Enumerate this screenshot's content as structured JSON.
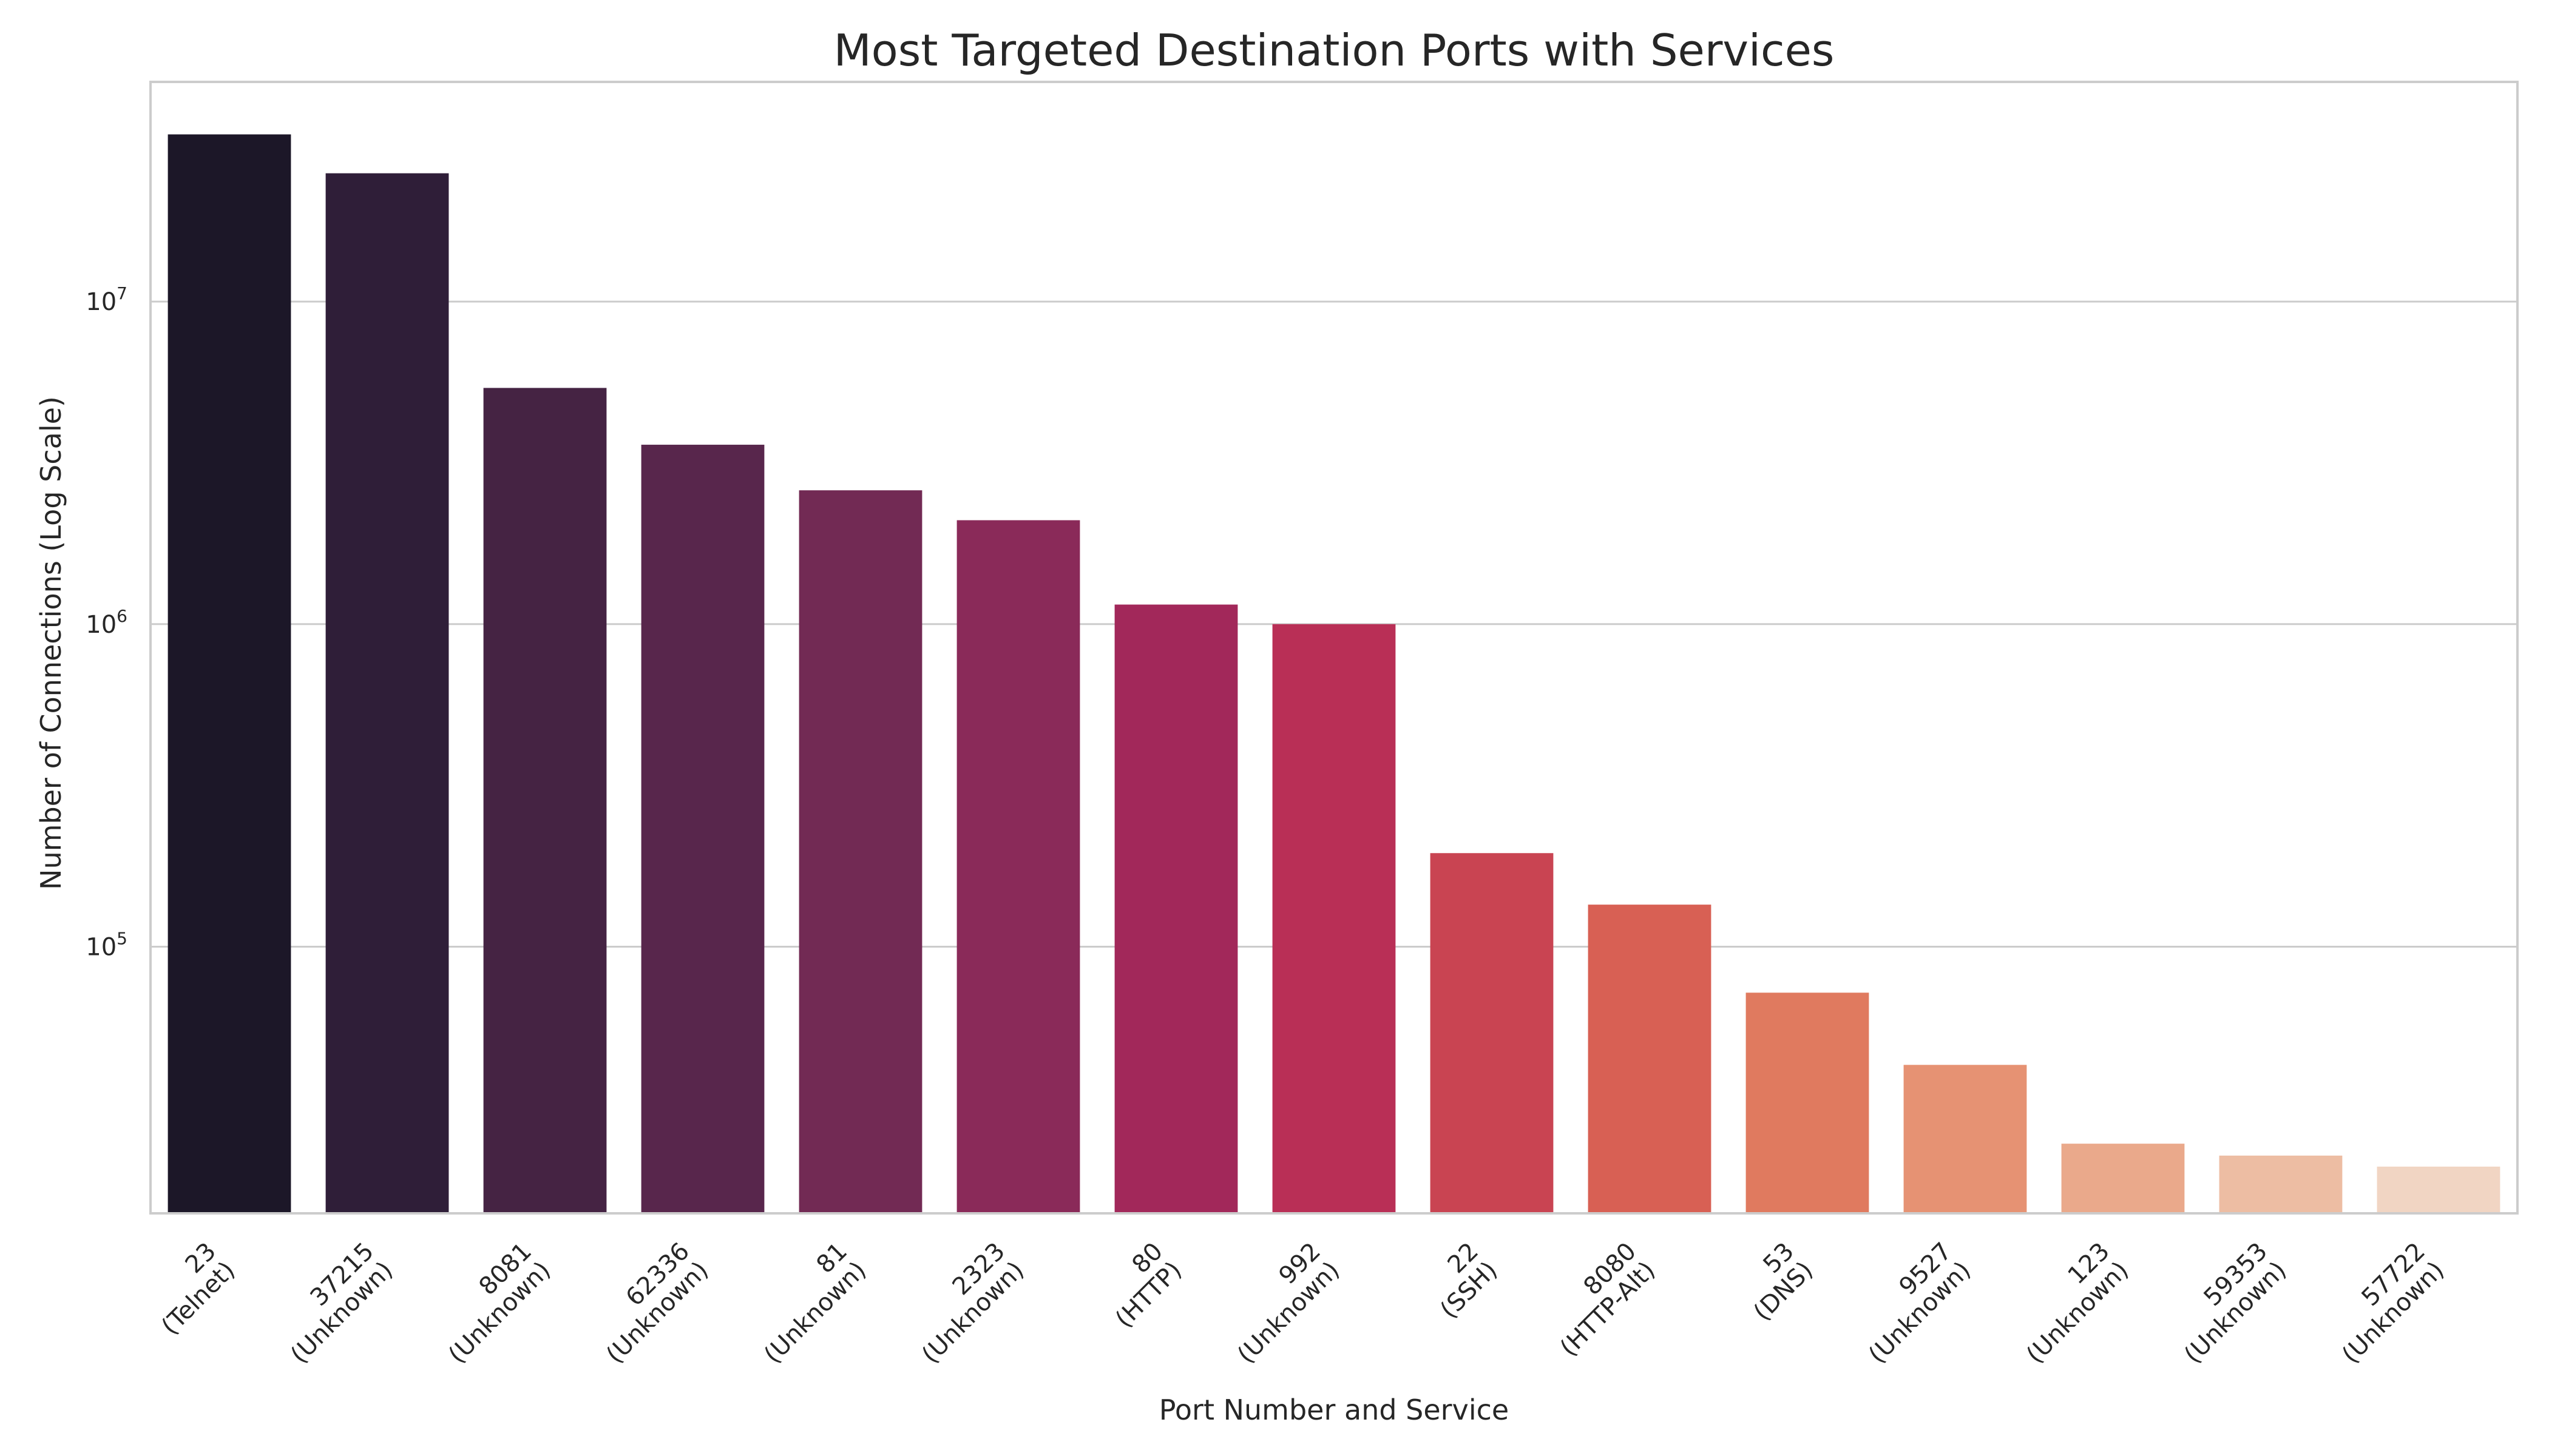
{
  "chart_data": {
    "type": "bar",
    "title": "Most Targeted Destination Ports with Services",
    "xlabel": "Port Number and Service",
    "ylabel": "Number of Connections (Log Scale)",
    "yscale": "log",
    "ylim": [
      14900,
      48000000
    ],
    "yticks": [
      {
        "value": 100000,
        "base": "10",
        "exp": "5"
      },
      {
        "value": 1000000,
        "base": "10",
        "exp": "6"
      },
      {
        "value": 10000000,
        "base": "10",
        "exp": "7"
      }
    ],
    "grid": "horizontal",
    "categories": [
      {
        "port": "23",
        "service": "(Telnet)"
      },
      {
        "port": "37215",
        "service": "(Unknown)"
      },
      {
        "port": "8081",
        "service": "(Unknown)"
      },
      {
        "port": "62336",
        "service": "(Unknown)"
      },
      {
        "port": "81",
        "service": "(Unknown)"
      },
      {
        "port": "2323",
        "service": "(Unknown)"
      },
      {
        "port": "80",
        "service": "(HTTP)"
      },
      {
        "port": "992",
        "service": "(Unknown)"
      },
      {
        "port": "22",
        "service": "(SSH)"
      },
      {
        "port": "8080",
        "service": "(HTTP-Alt)"
      },
      {
        "port": "53",
        "service": "(DNS)"
      },
      {
        "port": "9527",
        "service": "(Unknown)"
      },
      {
        "port": "123",
        "service": "(Unknown)"
      },
      {
        "port": "59353",
        "service": "(Unknown)"
      },
      {
        "port": "57722",
        "service": "(Unknown)"
      }
    ],
    "values": [
      33000000,
      25000000,
      5400000,
      3600000,
      2600000,
      2100000,
      1150000,
      1000000,
      195000,
      135000,
      72000,
      43000,
      24500,
      22500,
      20800
    ],
    "colors": [
      "#1c1728",
      "#2f1e38",
      "#452343",
      "#58264c",
      "#722a54",
      "#8a2a59",
      "#a2285a",
      "#b92f56",
      "#c94452",
      "#d86054",
      "#e07a5f",
      "#e69273",
      "#eaa98b",
      "#edbda3",
      "#f1d5c3"
    ]
  }
}
